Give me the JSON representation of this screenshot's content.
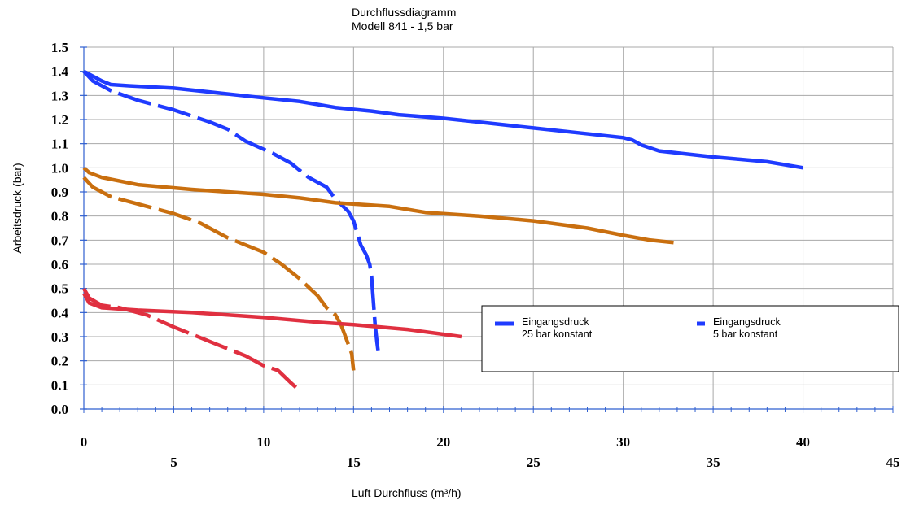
{
  "chart_data": {
    "type": "line",
    "title_lines": [
      "Durchflussdiagramm",
      "Modell 841 - 1,5 bar"
    ],
    "xlabel": "Luft Durchfluss (m³/h)",
    "ylabel": "Arbeitsdruck (bar)",
    "xlim": [
      0,
      45
    ],
    "ylim": [
      0,
      1.5
    ],
    "x_ticks_upper": [
      {
        "value": 0,
        "label": "0"
      },
      {
        "value": 10,
        "label": "10"
      },
      {
        "value": 20,
        "label": "20"
      },
      {
        "value": 30,
        "label": "30"
      },
      {
        "value": 40,
        "label": "40"
      }
    ],
    "x_ticks_lower": [
      {
        "value": 5,
        "label": "5"
      },
      {
        "value": 15,
        "label": "15"
      },
      {
        "value": 25,
        "label": "25"
      },
      {
        "value": 35,
        "label": "35"
      },
      {
        "value": 45,
        "label": "45"
      }
    ],
    "y_ticks": [
      {
        "value": 0.0,
        "label": "0.0"
      },
      {
        "value": 0.1,
        "label": "0.1"
      },
      {
        "value": 0.2,
        "label": "0.2"
      },
      {
        "value": 0.3,
        "label": "0.3"
      },
      {
        "value": 0.4,
        "label": "0.4"
      },
      {
        "value": 0.5,
        "label": "0.5"
      },
      {
        "value": 0.6,
        "label": "0.6"
      },
      {
        "value": 0.7,
        "label": "0.7"
      },
      {
        "value": 0.8,
        "label": "0.8"
      },
      {
        "value": 0.9,
        "label": "0.9"
      },
      {
        "value": 1.0,
        "label": "1.0"
      },
      {
        "value": 1.1,
        "label": "1.1"
      },
      {
        "value": 1.2,
        "label": "1.2"
      },
      {
        "value": 1.3,
        "label": "1.3"
      },
      {
        "value": 1.4,
        "label": "1.4"
      },
      {
        "value": 1.5,
        "label": "1.5"
      }
    ],
    "grid": true,
    "legend_position": "bottom-right",
    "legend": [
      {
        "line1": "Eingangsdruck",
        "line2": "25 bar konstant",
        "style": "solid",
        "color": "#1f3bff"
      },
      {
        "line1": "Eingangsdruck",
        "line2": "5 bar konstant",
        "style": "dashed",
        "color": "#1f3bff"
      }
    ],
    "series": [
      {
        "color": "#1f3bff",
        "style": "solid",
        "points": [
          [
            0,
            1.4
          ],
          [
            0.5,
            1.38
          ],
          [
            1,
            1.36
          ],
          [
            1.5,
            1.345
          ],
          [
            2.5,
            1.34
          ],
          [
            5,
            1.33
          ],
          [
            7.5,
            1.31
          ],
          [
            10,
            1.29
          ],
          [
            12,
            1.275
          ],
          [
            14,
            1.25
          ],
          [
            16,
            1.235
          ],
          [
            17.5,
            1.22
          ],
          [
            20,
            1.205
          ],
          [
            22.5,
            1.185
          ],
          [
            25,
            1.165
          ],
          [
            27.5,
            1.145
          ],
          [
            30,
            1.125
          ],
          [
            30.5,
            1.115
          ],
          [
            31,
            1.095
          ],
          [
            32,
            1.07
          ],
          [
            35,
            1.045
          ],
          [
            38,
            1.025
          ],
          [
            40,
            1.0
          ]
        ]
      },
      {
        "color": "#1f3bff",
        "style": "dashed",
        "points": [
          [
            0,
            1.4
          ],
          [
            0.5,
            1.36
          ],
          [
            1.5,
            1.32
          ],
          [
            3,
            1.28
          ],
          [
            5,
            1.24
          ],
          [
            7,
            1.19
          ],
          [
            8,
            1.16
          ],
          [
            9,
            1.11
          ],
          [
            10.5,
            1.06
          ],
          [
            11.5,
            1.02
          ],
          [
            12.5,
            0.96
          ],
          [
            13,
            0.94
          ],
          [
            13.5,
            0.92
          ],
          [
            14,
            0.87
          ],
          [
            14.7,
            0.82
          ],
          [
            15,
            0.78
          ],
          [
            15.2,
            0.73
          ],
          [
            15.4,
            0.68
          ],
          [
            15.7,
            0.64
          ],
          [
            15.9,
            0.6
          ],
          [
            16.0,
            0.55
          ],
          [
            16.1,
            0.45
          ],
          [
            16.2,
            0.35
          ],
          [
            16.3,
            0.28
          ],
          [
            16.4,
            0.22
          ]
        ]
      },
      {
        "color": "#c96f0f",
        "style": "solid",
        "points": [
          [
            0,
            1.0
          ],
          [
            0.3,
            0.98
          ],
          [
            1,
            0.96
          ],
          [
            3,
            0.93
          ],
          [
            6,
            0.91
          ],
          [
            10,
            0.89
          ],
          [
            12,
            0.875
          ],
          [
            14,
            0.855
          ],
          [
            17,
            0.84
          ],
          [
            19,
            0.815
          ],
          [
            22,
            0.8
          ],
          [
            25,
            0.78
          ],
          [
            28,
            0.75
          ],
          [
            30,
            0.72
          ],
          [
            31.5,
            0.7
          ],
          [
            32.8,
            0.69
          ]
        ]
      },
      {
        "color": "#c96f0f",
        "style": "dashed",
        "points": [
          [
            0,
            0.96
          ],
          [
            0.5,
            0.92
          ],
          [
            1.5,
            0.88
          ],
          [
            3,
            0.85
          ],
          [
            5,
            0.81
          ],
          [
            6.5,
            0.77
          ],
          [
            8,
            0.71
          ],
          [
            9,
            0.68
          ],
          [
            10,
            0.65
          ],
          [
            11,
            0.6
          ],
          [
            12,
            0.54
          ],
          [
            13,
            0.47
          ],
          [
            13.5,
            0.42
          ],
          [
            14.0,
            0.39
          ],
          [
            14.3,
            0.35
          ],
          [
            14.5,
            0.31
          ],
          [
            14.7,
            0.27
          ],
          [
            14.9,
            0.23
          ],
          [
            15.0,
            0.16
          ]
        ]
      },
      {
        "color": "#e03040",
        "style": "solid",
        "points": [
          [
            0,
            0.48
          ],
          [
            0.3,
            0.44
          ],
          [
            1,
            0.42
          ],
          [
            3,
            0.41
          ],
          [
            6,
            0.4
          ],
          [
            10,
            0.38
          ],
          [
            13,
            0.36
          ],
          [
            15,
            0.35
          ],
          [
            18,
            0.33
          ],
          [
            21.0,
            0.3
          ]
        ]
      },
      {
        "color": "#e03040",
        "style": "dashed",
        "points": [
          [
            0,
            0.5
          ],
          [
            0.3,
            0.46
          ],
          [
            1,
            0.43
          ],
          [
            2,
            0.42
          ],
          [
            3.5,
            0.39
          ],
          [
            5,
            0.34
          ],
          [
            7,
            0.28
          ],
          [
            8,
            0.25
          ],
          [
            9,
            0.22
          ],
          [
            10,
            0.18
          ],
          [
            10.8,
            0.16
          ],
          [
            11.5,
            0.11
          ],
          [
            11.8,
            0.09
          ]
        ]
      }
    ]
  }
}
